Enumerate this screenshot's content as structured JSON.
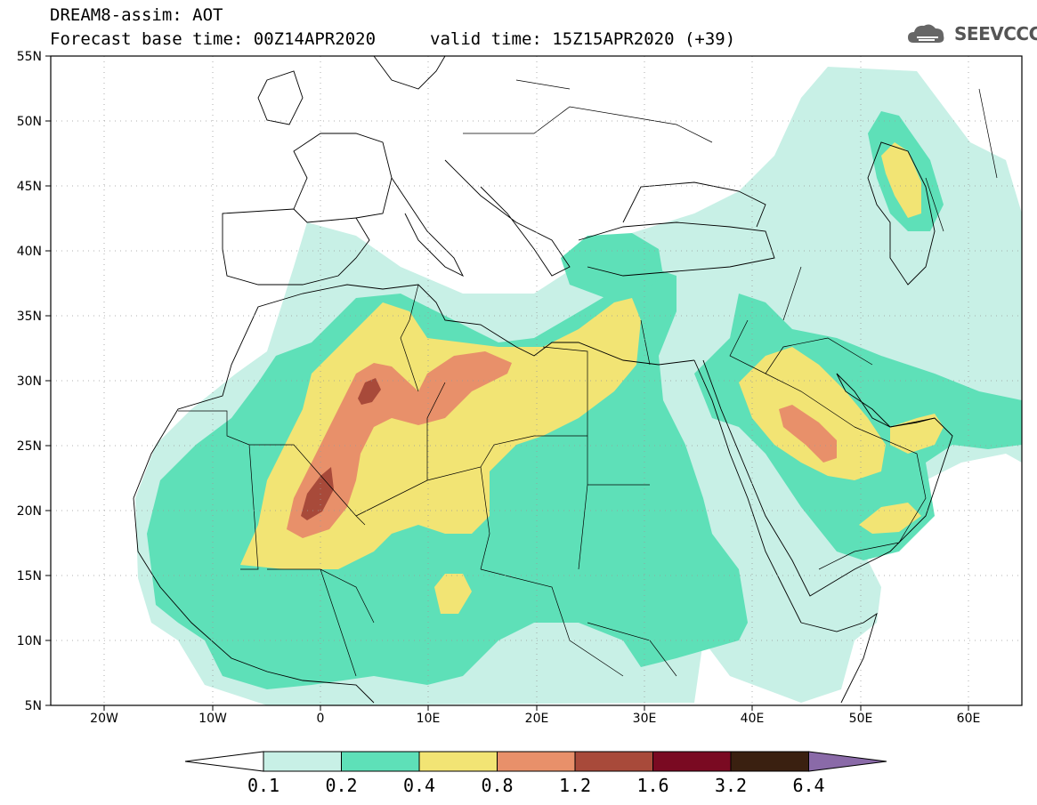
{
  "title": {
    "line1": "DREAM8-assim: AOT",
    "line2": "Forecast base time: 00Z14APR2020",
    "valid": "valid time: 15Z15APR2020 (+39)"
  },
  "logo": {
    "text": "SEEVCCC",
    "icon": "cloud-icon"
  },
  "map": {
    "lon_labels": [
      "20W",
      "10W",
      "0",
      "10E",
      "20E",
      "30E",
      "40E",
      "50E",
      "60E"
    ],
    "lat_labels": [
      "55N",
      "50N",
      "45N",
      "40N",
      "35N",
      "30N",
      "25N",
      "20N",
      "15N",
      "10N",
      "5N"
    ],
    "lon_range": [
      -25,
      65
    ],
    "lat_range": [
      5,
      55
    ]
  },
  "colorbar": {
    "levels": [
      "0.1",
      "0.2",
      "0.4",
      "0.8",
      "1.2",
      "1.6",
      "3.2",
      "6.4"
    ],
    "colors": [
      "#ffffff",
      "#c8f0e6",
      "#5ee0b8",
      "#f2e474",
      "#e8906a",
      "#a84a3a",
      "#7a0a22",
      "#3a2010",
      "#8a6aa8"
    ]
  },
  "colors": {
    "c01": "#c8f0e6",
    "c02": "#5ee0b8",
    "c04": "#f2e474",
    "c08": "#e8906a",
    "c12": "#a84a3a"
  }
}
